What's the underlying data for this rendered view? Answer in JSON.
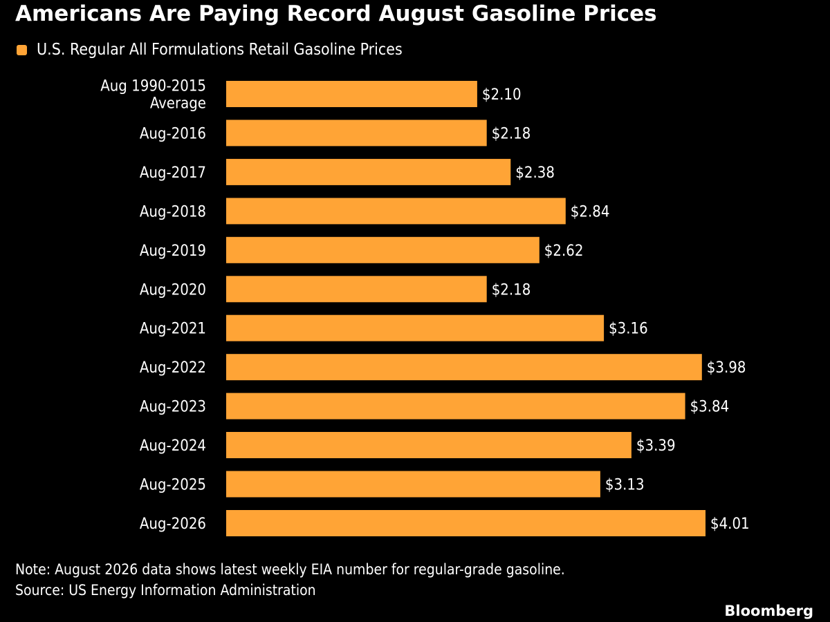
{
  "title": "Americans Are Paying Record August Gasoline Prices",
  "note": "Note: August 2026 data shows latest weekly EIA number for regular-grade gasoline.",
  "source": "Source: US Energy Information Administration",
  "brand": "Bloomberg",
  "colors": {
    "bar": "#FFA436",
    "background": "#000000",
    "text": "#FFFFFF"
  },
  "chart_data": {
    "type": "bar",
    "orientation": "horizontal",
    "legend": {
      "placement": "top-left",
      "entries": [
        "U.S. Regular All Formulations Retail Gasoline Prices"
      ]
    },
    "grid": false,
    "xlim": [
      0,
      4.01
    ],
    "categories": [
      [
        "Aug 1990-2015",
        "Average"
      ],
      [
        "Aug-2016"
      ],
      [
        "Aug-2017"
      ],
      [
        "Aug-2018"
      ],
      [
        "Aug-2019"
      ],
      [
        "Aug-2020"
      ],
      [
        "Aug-2021"
      ],
      [
        "Aug-2022"
      ],
      [
        "Aug-2023"
      ],
      [
        "Aug-2024"
      ],
      [
        "Aug-2025"
      ],
      [
        "Aug-2026"
      ]
    ],
    "series": [
      {
        "name": "U.S. Regular All Formulations Retail Gasoline Prices",
        "values": [
          2.1,
          2.18,
          2.38,
          2.84,
          2.62,
          2.18,
          3.16,
          3.98,
          3.84,
          3.39,
          3.13,
          4.01
        ],
        "labels": [
          "$2.10",
          "$2.18",
          "$2.38",
          "$2.84",
          "$2.62",
          "$2.18",
          "$3.16",
          "$3.98",
          "$3.84",
          "$3.39",
          "$3.13",
          "$4.01"
        ]
      }
    ]
  }
}
